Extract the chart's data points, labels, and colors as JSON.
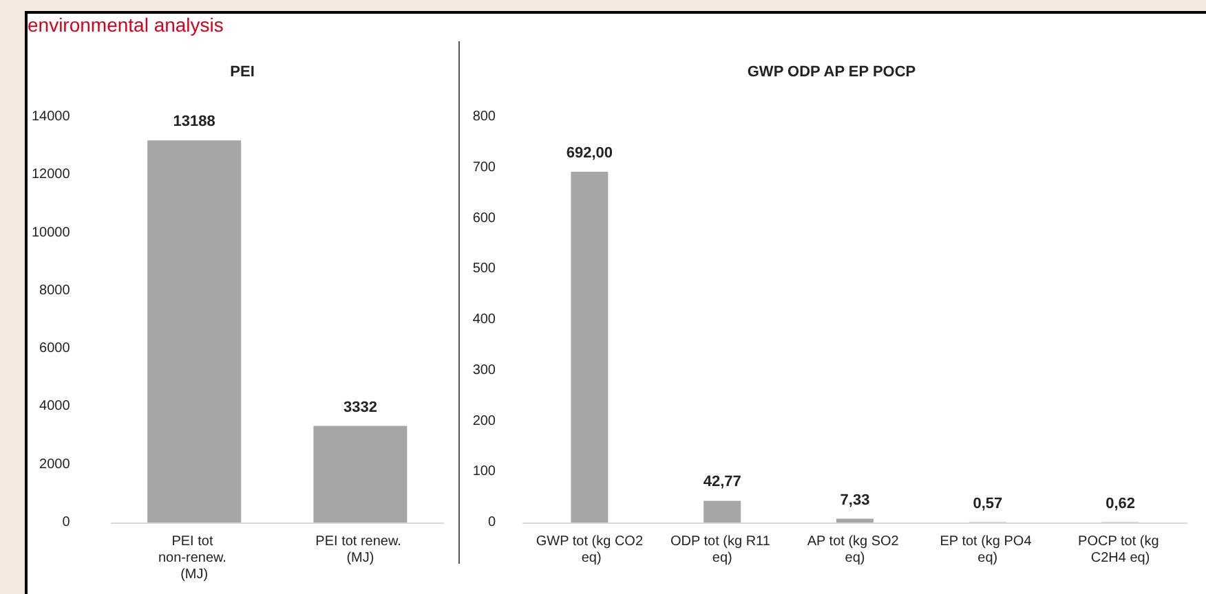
{
  "chart_data": [
    {
      "type": "bar",
      "title": "PEI",
      "annotations": [
        "environmental analysis"
      ],
      "categories": [
        "PEI tot non-renew. (MJ)",
        "PEI tot renew. (MJ)"
      ],
      "values": [
        13188,
        3332
      ],
      "color": "#a6a6a6",
      "ylim": [
        0,
        14000
      ],
      "yticks": [
        0,
        2000,
        4000,
        6000,
        8000,
        10000,
        12000,
        14000
      ],
      "grid": false,
      "data_labels": true
    },
    {
      "type": "bar",
      "title": "GWP ODP AP EP POCP",
      "categories": [
        "GWP tot (kg CO2 eq)",
        "ODP tot (kg R11 eq)",
        "AP tot (kg SO2 eq)",
        "EP tot (kg PO4 eq)",
        "POCP tot (kg C2H4 eq)"
      ],
      "values": [
        692,
        42.77,
        7.33,
        0.57,
        0.62
      ],
      "value_labels": [
        "692,00",
        "42,77",
        "7,33",
        "0,57",
        "0,62"
      ],
      "color": "#a6a6a6",
      "ylim": [
        0,
        800
      ],
      "yticks": [
        0,
        100,
        200,
        300,
        400,
        500,
        600,
        700,
        800
      ],
      "grid": false
    }
  ]
}
